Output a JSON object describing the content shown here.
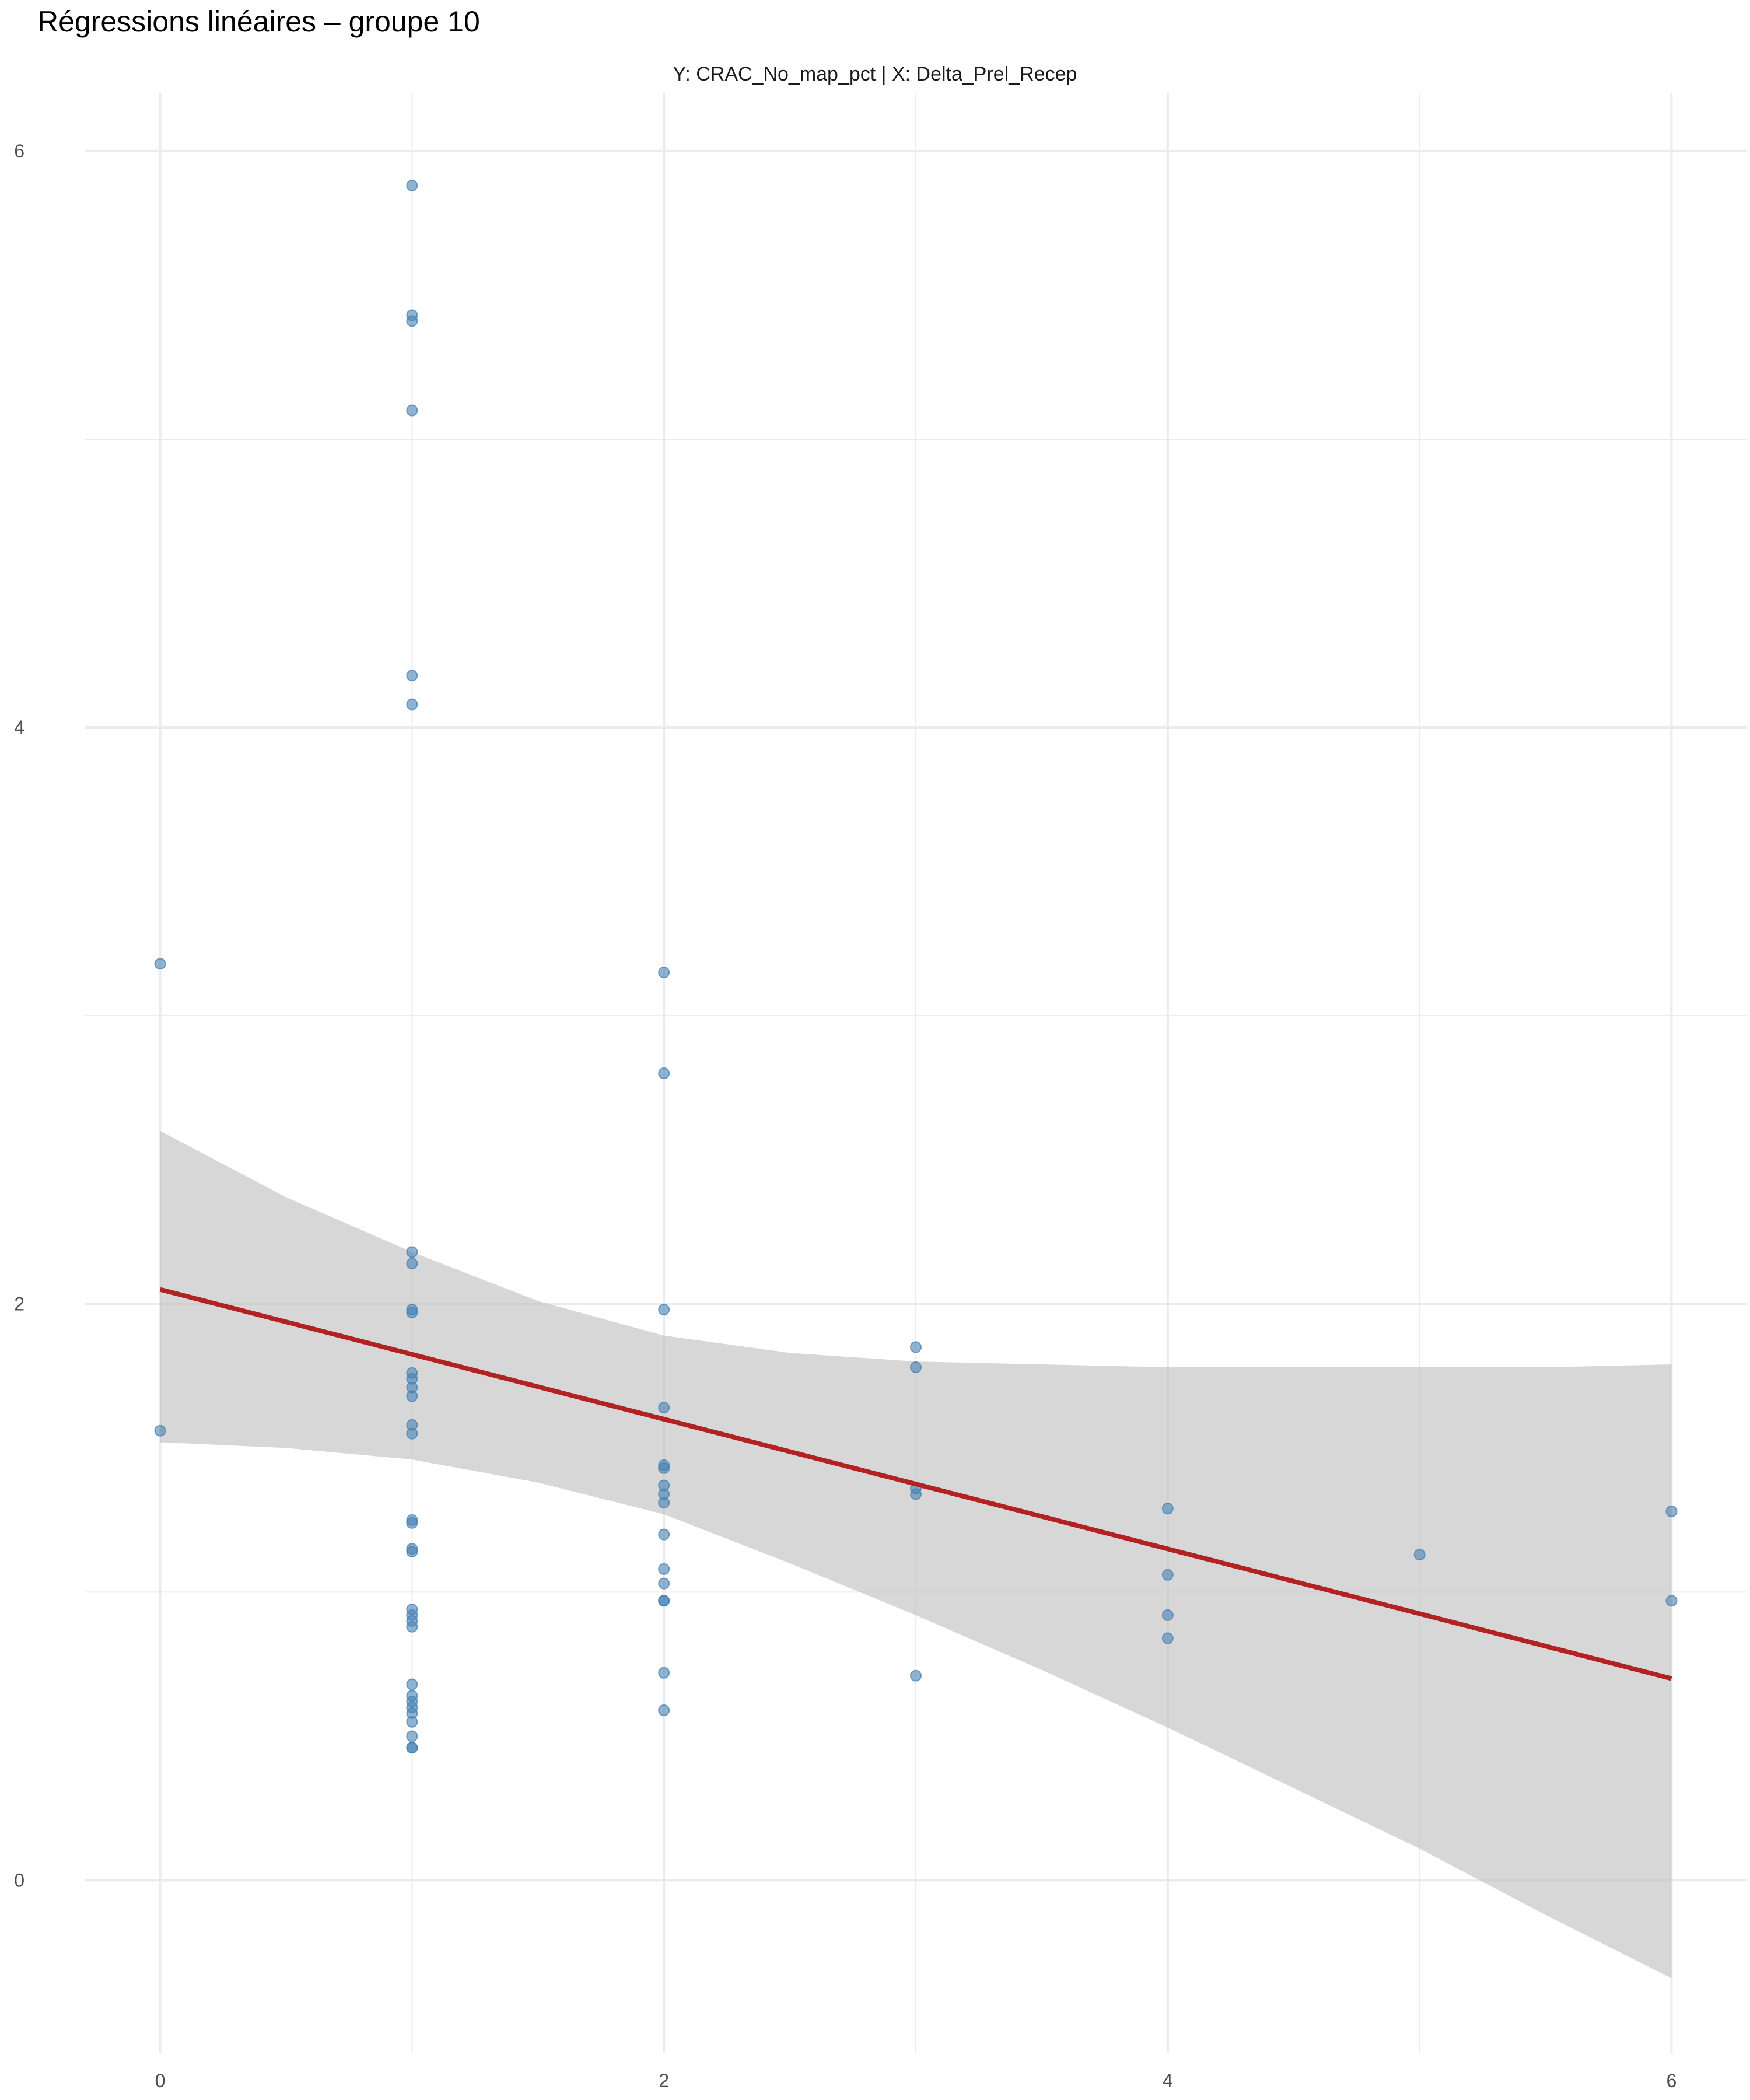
{
  "title": "Régressions linéaires – groupe 10",
  "subtitle": "Y: CRAC_No_map_pct | X: Delta_Prel_Recep",
  "chart_data": {
    "type": "scatter",
    "title": "Régressions linéaires – groupe 10",
    "subtitle": "Y: CRAC_No_map_pct | X: Delta_Prel_Recep",
    "xlabel": "",
    "ylabel": "",
    "xlim": [
      -0.3,
      6.3
    ],
    "ylim": [
      -0.6,
      6.2
    ],
    "x_ticks": [
      0,
      2,
      4,
      6
    ],
    "y_ticks": [
      0,
      2,
      4,
      6
    ],
    "x_tick_labels": [
      "0",
      "2",
      "4",
      "6"
    ],
    "y_tick_labels": [
      "0",
      "2",
      "4",
      "6"
    ],
    "grid": true,
    "legend": "none",
    "colors": {
      "points": "#4682b4",
      "line": "#b22222",
      "band": "#bdbdbd",
      "grid": "#ebebeb"
    },
    "points": [
      {
        "x": 0,
        "y": 3.18
      },
      {
        "x": 0,
        "y": 1.56
      },
      {
        "x": 1,
        "y": 5.88
      },
      {
        "x": 1,
        "y": 5.43
      },
      {
        "x": 1,
        "y": 5.41
      },
      {
        "x": 1,
        "y": 5.1
      },
      {
        "x": 1,
        "y": 4.18
      },
      {
        "x": 1,
        "y": 4.08
      },
      {
        "x": 1,
        "y": 2.18
      },
      {
        "x": 1,
        "y": 2.14
      },
      {
        "x": 1,
        "y": 1.98
      },
      {
        "x": 1,
        "y": 1.97
      },
      {
        "x": 1,
        "y": 1.76
      },
      {
        "x": 1,
        "y": 1.74
      },
      {
        "x": 1,
        "y": 1.71
      },
      {
        "x": 1,
        "y": 1.68
      },
      {
        "x": 1,
        "y": 1.58
      },
      {
        "x": 1,
        "y": 1.55
      },
      {
        "x": 1,
        "y": 1.25
      },
      {
        "x": 1,
        "y": 1.24
      },
      {
        "x": 1,
        "y": 1.15
      },
      {
        "x": 1,
        "y": 1.14
      },
      {
        "x": 1,
        "y": 0.94
      },
      {
        "x": 1,
        "y": 0.92
      },
      {
        "x": 1,
        "y": 0.9
      },
      {
        "x": 1,
        "y": 0.88
      },
      {
        "x": 1,
        "y": 0.68
      },
      {
        "x": 1,
        "y": 0.64
      },
      {
        "x": 1,
        "y": 0.62
      },
      {
        "x": 1,
        "y": 0.6
      },
      {
        "x": 1,
        "y": 0.58
      },
      {
        "x": 1,
        "y": 0.55
      },
      {
        "x": 1,
        "y": 0.5
      },
      {
        "x": 1,
        "y": 0.46
      },
      {
        "x": 1,
        "y": 0.46
      },
      {
        "x": 2,
        "y": 3.15
      },
      {
        "x": 2,
        "y": 2.8
      },
      {
        "x": 2,
        "y": 1.98
      },
      {
        "x": 2,
        "y": 1.64
      },
      {
        "x": 2,
        "y": 1.44
      },
      {
        "x": 2,
        "y": 1.43
      },
      {
        "x": 2,
        "y": 1.37
      },
      {
        "x": 2,
        "y": 1.34
      },
      {
        "x": 2,
        "y": 1.31
      },
      {
        "x": 2,
        "y": 1.2
      },
      {
        "x": 2,
        "y": 1.08
      },
      {
        "x": 2,
        "y": 1.03
      },
      {
        "x": 2,
        "y": 0.97
      },
      {
        "x": 2,
        "y": 0.97
      },
      {
        "x": 2,
        "y": 0.72
      },
      {
        "x": 2,
        "y": 0.59
      },
      {
        "x": 3,
        "y": 1.85
      },
      {
        "x": 3,
        "y": 1.78
      },
      {
        "x": 3,
        "y": 1.36
      },
      {
        "x": 3,
        "y": 1.34
      },
      {
        "x": 3,
        "y": 0.71
      },
      {
        "x": 4,
        "y": 1.29
      },
      {
        "x": 4,
        "y": 1.06
      },
      {
        "x": 4,
        "y": 0.92
      },
      {
        "x": 4,
        "y": 0.84
      },
      {
        "x": 5,
        "y": 1.13
      },
      {
        "x": 6,
        "y": 1.28
      },
      {
        "x": 6,
        "y": 0.97
      }
    ],
    "regression": {
      "x": [
        0,
        6
      ],
      "y": [
        2.05,
        0.7
      ]
    },
    "confidence_band": [
      {
        "x": 0,
        "lower": 1.52,
        "upper": 2.6
      },
      {
        "x": 0.5,
        "lower": 1.5,
        "upper": 2.37
      },
      {
        "x": 1,
        "lower": 1.46,
        "upper": 2.18
      },
      {
        "x": 1.5,
        "lower": 1.38,
        "upper": 2.01
      },
      {
        "x": 2,
        "lower": 1.27,
        "upper": 1.89
      },
      {
        "x": 2.5,
        "lower": 1.1,
        "upper": 1.83
      },
      {
        "x": 3,
        "lower": 0.92,
        "upper": 1.8
      },
      {
        "x": 3.5,
        "lower": 0.73,
        "upper": 1.79
      },
      {
        "x": 4,
        "lower": 0.53,
        "upper": 1.78
      },
      {
        "x": 4.5,
        "lower": 0.32,
        "upper": 1.78
      },
      {
        "x": 5,
        "lower": 0.11,
        "upper": 1.78
      },
      {
        "x": 5.5,
        "lower": -0.12,
        "upper": 1.78
      },
      {
        "x": 6,
        "lower": -0.34,
        "upper": 1.79
      }
    ]
  }
}
